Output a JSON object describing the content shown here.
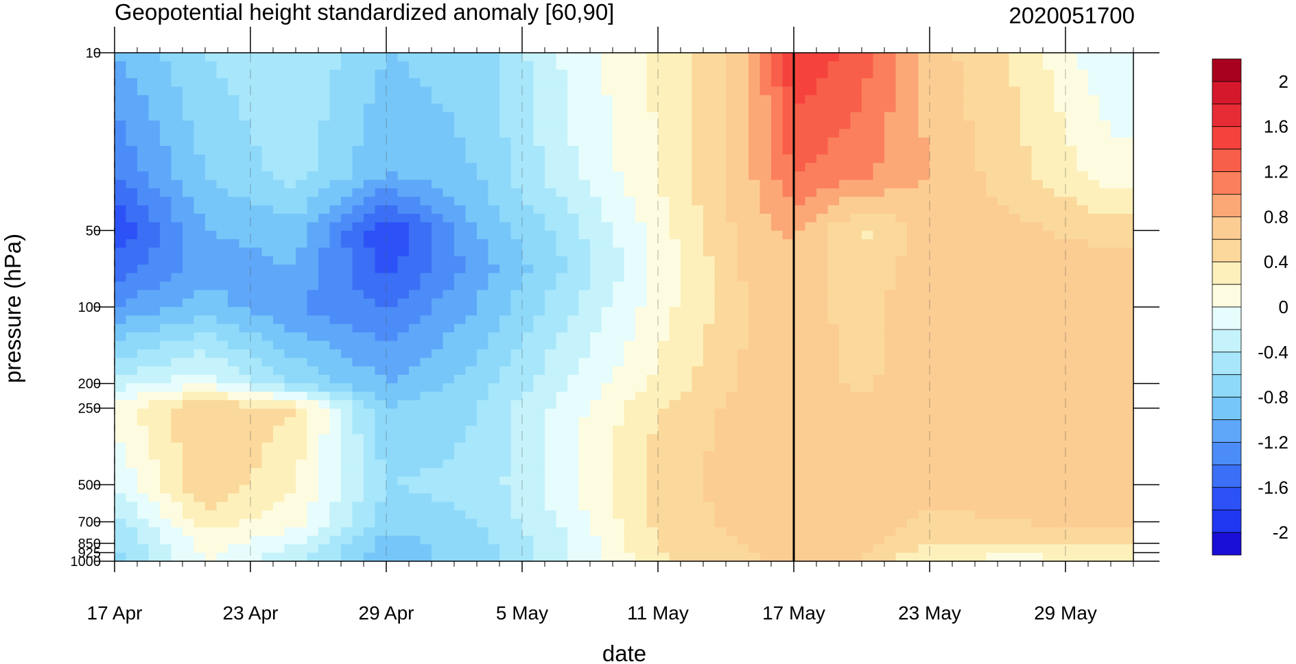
{
  "chart_data": {
    "type": "heatmap",
    "title": "Geopotential height standardized anomaly [60,90]",
    "subtitle": "2020051700",
    "xlabel": "date",
    "ylabel": "pressure (hPa)",
    "x_ticks": [
      "17 Apr",
      "23 Apr",
      "29 Apr",
      "5 May",
      "11 May",
      "17 May",
      "23 May",
      "29 May"
    ],
    "x_range": [
      "2020-04-17",
      "2020-06-01"
    ],
    "y_scale": "log",
    "y_reversed": true,
    "y_range": [
      1000,
      10
    ],
    "y_ticks": [
      10,
      50,
      100,
      200,
      250,
      500,
      700,
      850,
      925,
      1000
    ],
    "y_tick_labels": [
      "10",
      "50",
      "100",
      "200",
      "250",
      "500",
      "700",
      "850",
      "925",
      "1000"
    ],
    "current_date_line": "17 May",
    "colorbar": {
      "levels": [
        -2.2,
        -2.0,
        -1.8,
        -1.6,
        -1.4,
        -1.2,
        -1.0,
        -0.8,
        -0.6,
        -0.4,
        -0.2,
        0,
        0.2,
        0.4,
        0.6,
        0.8,
        1.0,
        1.2,
        1.4,
        1.6,
        1.8,
        2.0,
        2.2
      ],
      "colors": [
        "#1a0fd6",
        "#2037f2",
        "#2c52f7",
        "#3b6ff5",
        "#4c8cf8",
        "#5fa7f9",
        "#76c6f9",
        "#8ed9fa",
        "#a7e6fb",
        "#c5f2fb",
        "#e6fcfd",
        "#fefce0",
        "#fdf0bb",
        "#fbd89b",
        "#fccd93",
        "#fba876",
        "#fb7f5c",
        "#f85f4a",
        "#f5423d",
        "#e82c36",
        "#d6182d",
        "#a8001f"
      ],
      "tick_labels": [
        "2",
        "1.6",
        "1.2",
        "0.8",
        "0.4",
        "0",
        "-0.4",
        "-0.8",
        "-1.2",
        "-1.6",
        "-2"
      ]
    },
    "x_days": [
      0,
      4,
      8,
      12,
      16,
      20,
      24,
      28,
      30,
      33,
      36,
      40,
      44
    ],
    "y_levels": [
      10,
      30,
      50,
      70,
      100,
      200,
      250,
      500,
      700,
      850,
      925,
      1000
    ],
    "z": [
      [
        -1.0,
        -0.6,
        -0.4,
        -0.8,
        -0.7,
        -0.15,
        0.25,
        0.7,
        1.6,
        1.3,
        0.7,
        0.35,
        -0.2
      ],
      [
        -1.4,
        -0.8,
        -0.5,
        -1.0,
        -0.8,
        -0.25,
        0.2,
        0.75,
        1.2,
        1.05,
        0.8,
        0.45,
        0.1
      ],
      [
        -1.8,
        -1.0,
        -0.9,
        -1.8,
        -1.0,
        -0.5,
        0.1,
        0.7,
        0.85,
        0.35,
        0.7,
        0.65,
        0.5
      ],
      [
        -1.5,
        -1.1,
        -1.0,
        -1.7,
        -1.1,
        -0.6,
        0.05,
        0.65,
        0.75,
        0.45,
        0.75,
        0.7,
        0.7
      ],
      [
        -1.2,
        -0.9,
        -1.2,
        -1.4,
        -1.0,
        -0.45,
        0.1,
        0.6,
        0.72,
        0.5,
        0.78,
        0.8,
        0.75
      ],
      [
        -0.3,
        -0.05,
        -0.6,
        -1.0,
        -0.7,
        -0.2,
        0.25,
        0.65,
        0.75,
        0.55,
        0.76,
        0.8,
        0.78
      ],
      [
        0.1,
        0.6,
        0.4,
        -0.8,
        -0.6,
        -0.1,
        0.4,
        0.7,
        0.74,
        0.7,
        0.75,
        0.78,
        0.78
      ],
      [
        -0.2,
        0.6,
        0.2,
        -0.6,
        -0.55,
        -0.05,
        0.5,
        0.72,
        0.72,
        0.75,
        0.7,
        0.72,
        0.72
      ],
      [
        -0.5,
        0.3,
        0.1,
        -0.7,
        -0.6,
        -0.15,
        0.45,
        0.68,
        0.72,
        0.72,
        0.55,
        0.6,
        0.65
      ],
      [
        -0.6,
        0.1,
        -0.2,
        -0.9,
        -0.7,
        -0.2,
        0.4,
        0.62,
        0.7,
        0.68,
        0.45,
        0.45,
        0.5
      ],
      [
        -0.65,
        0.05,
        -0.3,
        -0.9,
        -0.7,
        -0.2,
        0.38,
        0.6,
        0.68,
        0.62,
        0.3,
        0.25,
        0.3
      ],
      [
        -0.7,
        0.0,
        -0.35,
        -0.95,
        -0.7,
        -0.25,
        0.35,
        0.55,
        0.66,
        0.6,
        0.15,
        0.12,
        0.2
      ]
    ]
  }
}
